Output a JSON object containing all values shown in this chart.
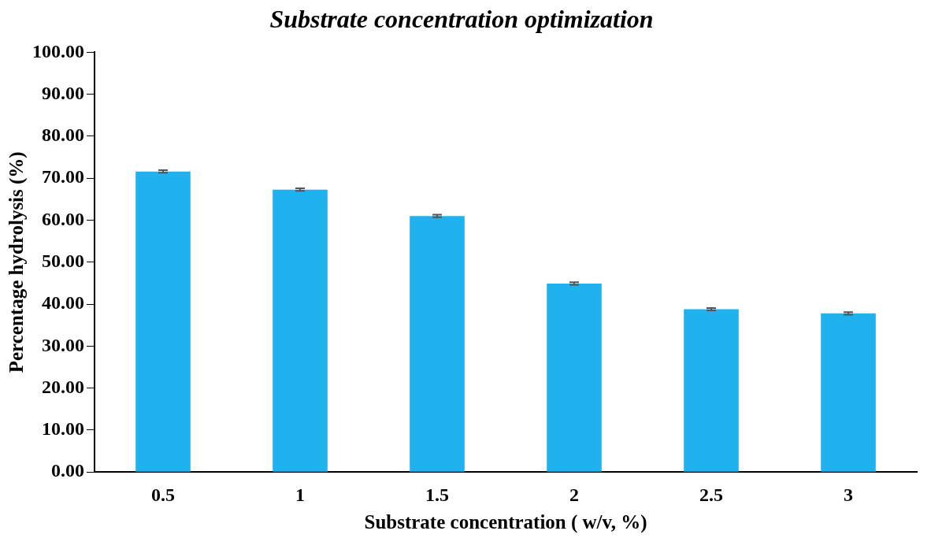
{
  "chart_data": {
    "type": "bar",
    "title": "Substrate concentration optimization",
    "xlabel": "Substrate concentration ( w/v, %)",
    "ylabel": "Percentage hydrolysis (%)",
    "categories": [
      "0.5",
      "1",
      "1.5",
      "2",
      "2.5",
      "3"
    ],
    "values": [
      71.6,
      67.3,
      61.0,
      44.9,
      38.8,
      37.8
    ],
    "errors": [
      0.3,
      0.3,
      0.3,
      0.3,
      0.3,
      0.3
    ],
    "color": "#1fb2ee",
    "ylim": [
      0,
      100
    ],
    "yticks": [
      {
        "value": 0,
        "label": "0.00"
      },
      {
        "value": 10,
        "label": "10.00"
      },
      {
        "value": 20,
        "label": "20.00"
      },
      {
        "value": 30,
        "label": "30.00"
      },
      {
        "value": 40,
        "label": "40.00"
      },
      {
        "value": 50,
        "label": "50.00"
      },
      {
        "value": 60,
        "label": "60.00"
      },
      {
        "value": 70,
        "label": "70.00"
      },
      {
        "value": 80,
        "label": "80.00"
      },
      {
        "value": 90,
        "label": "90.00"
      },
      {
        "value": 100,
        "label": "100.00"
      }
    ],
    "grid": false,
    "legend": false
  }
}
